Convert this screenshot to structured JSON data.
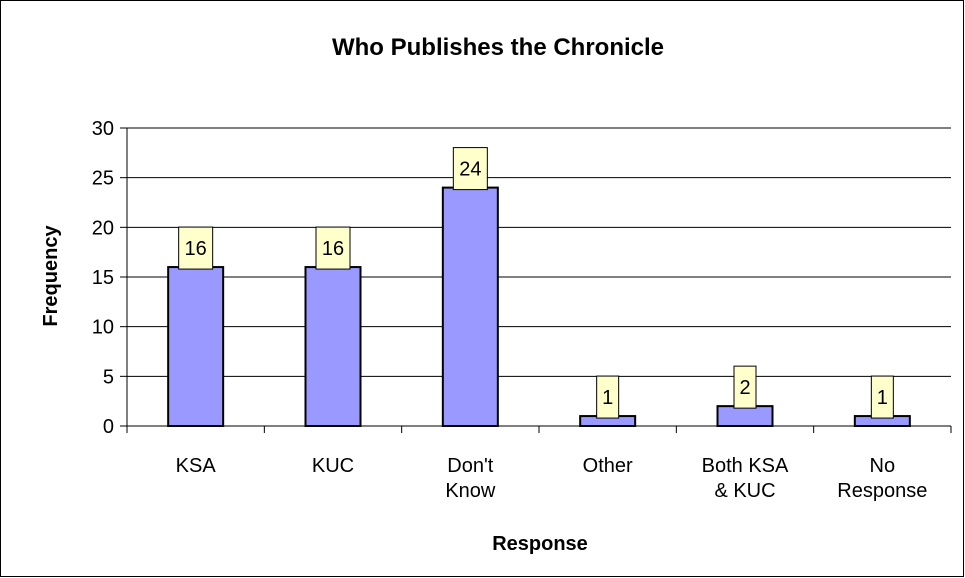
{
  "chart_data": {
    "type": "bar",
    "title": "Who Publishes the Chronicle",
    "xlabel": "Response",
    "ylabel": "Frequency",
    "categories": [
      [
        "KSA"
      ],
      [
        "KUC"
      ],
      [
        "Don't",
        "Know"
      ],
      [
        "Other"
      ],
      [
        "Both KSA",
        "& KUC"
      ],
      [
        "No",
        "Response"
      ]
    ],
    "values": [
      16,
      16,
      24,
      1,
      2,
      1
    ],
    "data_labels": [
      "16",
      "16",
      "24",
      "1",
      "2",
      "1"
    ],
    "yticks": [
      "0",
      "5",
      "10",
      "15",
      "20",
      "25",
      "30"
    ],
    "ylim": [
      0,
      30
    ],
    "grid": true,
    "legend": "none",
    "colors": {
      "bar_fill": "#9999ff",
      "bar_stroke": "#000000",
      "label_fill": "#ffffcc",
      "grid": "#000000"
    }
  }
}
